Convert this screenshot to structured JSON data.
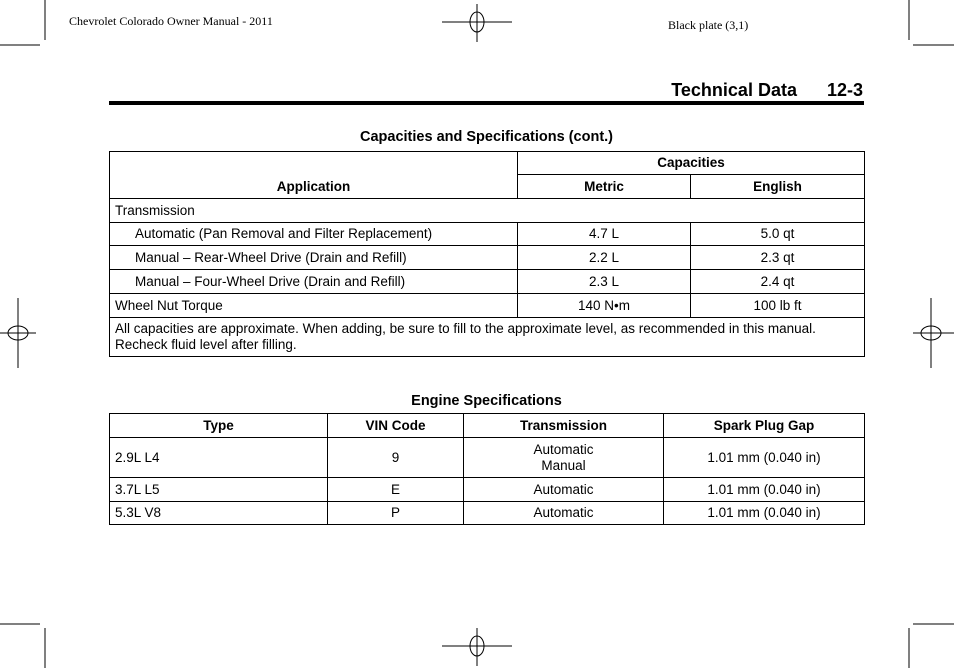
{
  "header": {
    "left": "Chevrolet Colorado Owner Manual - 2011",
    "right": "Black plate (3,1)"
  },
  "section": {
    "title": "Technical Data",
    "page": "12-3"
  },
  "capacities": {
    "caption": "Capacities and Specifications (cont.)",
    "headers": {
      "application": "Application",
      "capacities": "Capacities",
      "metric": "Metric",
      "english": "English"
    },
    "group": "Transmission",
    "rows": [
      {
        "app": "Automatic (Pan Removal and Filter Replacement)",
        "metric": "4.7 L",
        "english": "5.0 qt"
      },
      {
        "app": "Manual – Rear-Wheel Drive (Drain and Refill)",
        "metric": "2.2 L",
        "english": "2.3 qt"
      },
      {
        "app": "Manual – Four-Wheel Drive (Drain and Refill)",
        "metric": "2.3 L",
        "english": "2.4 qt"
      },
      {
        "app": "Wheel Nut Torque",
        "metric": "140 N•m",
        "english": "100 lb ft"
      }
    ],
    "note": "All capacities are approximate. When adding, be sure to fill to the approximate level, as recommended in this manual. Recheck fluid level after filling."
  },
  "engine": {
    "caption": "Engine Specifications",
    "headers": [
      "Type",
      "VIN Code",
      "Transmission",
      "Spark Plug Gap"
    ],
    "rows": [
      {
        "type": "2.9L L4",
        "vin": "9",
        "trans1": "Automatic",
        "trans2": "Manual",
        "gap": "1.01 mm (0.040 in)"
      },
      {
        "type": "3.7L L5",
        "vin": "E",
        "trans1": "Automatic",
        "gap": "1.01 mm (0.040 in)"
      },
      {
        "type": "5.3L V8",
        "vin": "P",
        "trans1": "Automatic",
        "gap": "1.01 mm (0.040 in)"
      }
    ]
  }
}
